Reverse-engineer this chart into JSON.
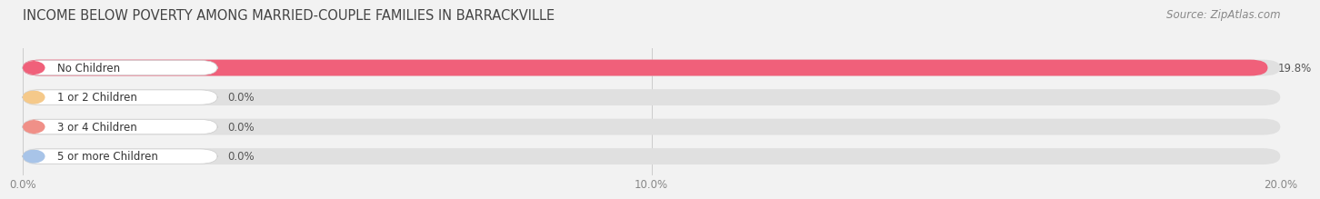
{
  "title": "INCOME BELOW POVERTY AMONG MARRIED-COUPLE FAMILIES IN BARRACKVILLE",
  "source": "Source: ZipAtlas.com",
  "categories": [
    "No Children",
    "1 or 2 Children",
    "3 or 4 Children",
    "5 or more Children"
  ],
  "values": [
    19.8,
    0.0,
    0.0,
    0.0
  ],
  "bar_colors": [
    "#f0607a",
    "#f5c98a",
    "#f09088",
    "#a8c4e8"
  ],
  "xlim": [
    0,
    20.0
  ],
  "xticks": [
    0.0,
    10.0,
    20.0
  ],
  "xticklabels": [
    "0.0%",
    "10.0%",
    "20.0%"
  ],
  "background_color": "#f2f2f2",
  "bar_background_color": "#e0e0e0",
  "title_fontsize": 10.5,
  "source_fontsize": 8.5,
  "tick_fontsize": 8.5,
  "label_fontsize": 8.5,
  "value_fontsize": 8.5
}
